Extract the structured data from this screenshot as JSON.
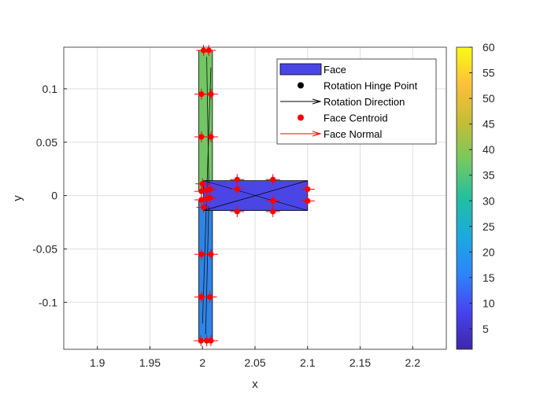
{
  "chart_data": {
    "type": "scatter",
    "xlabel": "x",
    "ylabel": "y",
    "xlim": [
      1.868,
      2.232
    ],
    "ylim": [
      -0.144,
      0.139
    ],
    "xticks": [
      "1.9",
      "1.95",
      "2",
      "2.05",
      "2.1",
      "2.15",
      "2.2"
    ],
    "xtick_values": [
      1.9,
      1.95,
      2.0,
      2.05,
      2.1,
      2.15,
      2.2
    ],
    "yticks": [
      "-0.1",
      "-0.05",
      "0",
      "0.05",
      "0.1"
    ],
    "ytick_values": [
      -0.1,
      -0.05,
      0,
      0.05,
      0.1
    ],
    "grid": true,
    "legend_position": "top-right",
    "legend": [
      {
        "label": "Face",
        "kind": "patch",
        "color": "#4a46e6"
      },
      {
        "label": "Rotation Hinge Point",
        "kind": "marker",
        "color": "#000000"
      },
      {
        "label": "Rotation Direction",
        "kind": "arrow",
        "color": "#000000"
      },
      {
        "label": "Face Centroid",
        "kind": "marker",
        "color": "#ff0000"
      },
      {
        "label": "Face Normal",
        "kind": "arrow",
        "color": "#ff0000"
      }
    ],
    "colorbar": {
      "range": [
        1,
        60
      ],
      "ticks": [
        "5",
        "10",
        "15",
        "20",
        "25",
        "30",
        "35",
        "40",
        "45",
        "50",
        "55",
        "60"
      ],
      "tick_values": [
        5,
        10,
        15,
        20,
        25,
        30,
        35,
        40,
        45,
        50,
        55,
        60
      ],
      "colormap": [
        "#3e26a8",
        "#4743f0",
        "#2d85fa",
        "#1ca9df",
        "#22bfa0",
        "#74c960",
        "#c5bd35",
        "#fcbf3a",
        "#f9fb14"
      ]
    },
    "faces": [
      {
        "color": "#2f84e6",
        "x": [
          1.9965,
          2.0095,
          2.0095,
          1.9965
        ],
        "y": [
          -0.136,
          -0.136,
          -0.004,
          -0.004
        ]
      },
      {
        "color": "#73c665",
        "x": [
          1.9965,
          2.0095,
          2.0095,
          1.9965
        ],
        "y": [
          0.004,
          0.004,
          0.136,
          0.136
        ]
      },
      {
        "color": "#4a46e6",
        "x": [
          2.001,
          2.1,
          2.1,
          2.001
        ],
        "y": [
          -0.014,
          -0.014,
          0.014,
          0.014
        ]
      }
    ],
    "centroids": [
      {
        "x": 1.9985,
        "y": -0.136
      },
      {
        "x": 2.004,
        "y": -0.136
      },
      {
        "x": 2.008,
        "y": -0.136
      },
      {
        "x": 1.999,
        "y": -0.095
      },
      {
        "x": 2.007,
        "y": -0.095
      },
      {
        "x": 1.999,
        "y": -0.055
      },
      {
        "x": 2.008,
        "y": -0.055
      },
      {
        "x": 1.999,
        "y": -0.004
      },
      {
        "x": 2.004,
        "y": -0.003
      },
      {
        "x": 2.007,
        "y": -0.002
      },
      {
        "x": 1.999,
        "y": 0.004
      },
      {
        "x": 2.004,
        "y": 0.005
      },
      {
        "x": 2.007,
        "y": 0.006
      },
      {
        "x": 1.999,
        "y": 0.055
      },
      {
        "x": 2.008,
        "y": 0.055
      },
      {
        "x": 1.999,
        "y": 0.095
      },
      {
        "x": 2.008,
        "y": 0.095
      },
      {
        "x": 2.001,
        "y": 0.136
      },
      {
        "x": 2.006,
        "y": 0.136
      },
      {
        "x": 2.033,
        "y": 0.015
      },
      {
        "x": 2.067,
        "y": 0.015
      },
      {
        "x": 2.033,
        "y": -0.015
      },
      {
        "x": 2.067,
        "y": -0.015
      },
      {
        "x": 2.033,
        "y": 0.006
      },
      {
        "x": 2.067,
        "y": -0.005
      },
      {
        "x": 2.1,
        "y": 0.006
      },
      {
        "x": 2.1,
        "y": -0.005
      },
      {
        "x": 2.0,
        "y": 0.011
      },
      {
        "x": 2.001,
        "y": -0.011
      }
    ]
  }
}
